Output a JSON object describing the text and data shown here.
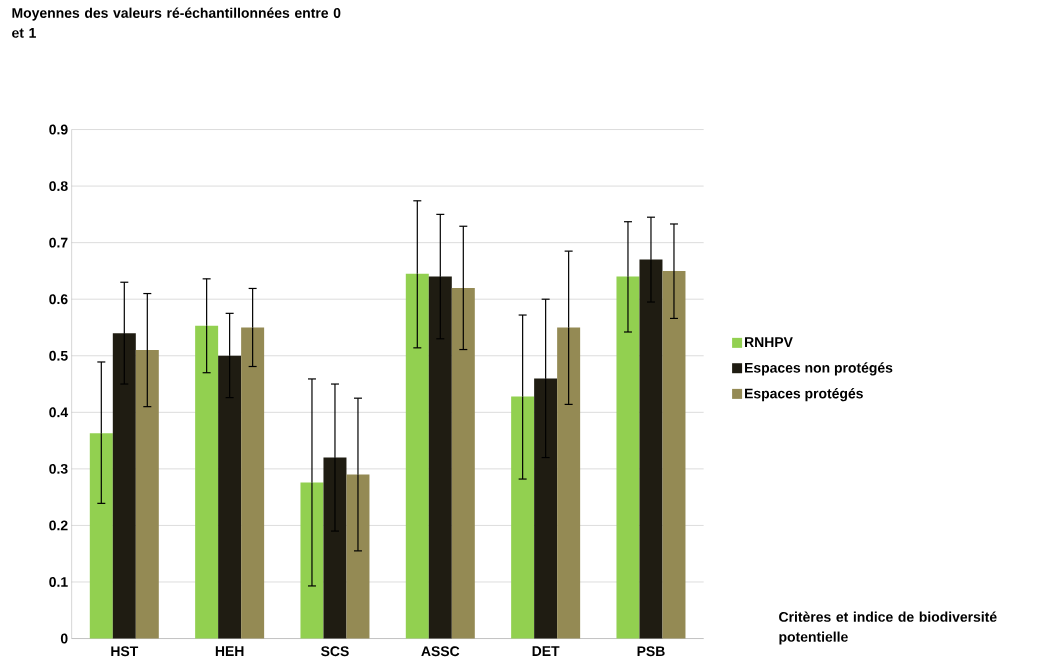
{
  "chart_data": {
    "type": "bar",
    "annotations": [
      "Moyennes des valeurs ré-échantillonnées entre 0 et 1",
      "Critères et indice de biodiversité potentielle"
    ],
    "categories": [
      "HST",
      "HEH",
      "SCS",
      "ASSC",
      "DET",
      "PSB"
    ],
    "series": [
      {
        "name": "RNHPV",
        "color": "#92d050",
        "values": [
          0.363,
          0.553,
          0.276,
          0.645,
          0.428,
          0.64
        ],
        "errors": [
          [
            0.239,
            0.489
          ],
          [
            0.47,
            0.636
          ],
          [
            0.093,
            0.459
          ],
          [
            0.514,
            0.774
          ],
          [
            0.282,
            0.572
          ],
          [
            0.542,
            0.737
          ]
        ]
      },
      {
        "name": "Espaces non protégés",
        "color": "#1f1c12",
        "values": [
          0.54,
          0.5,
          0.32,
          0.64,
          0.46,
          0.67
        ],
        "errors": [
          [
            0.45,
            0.63
          ],
          [
            0.426,
            0.575
          ],
          [
            0.19,
            0.45
          ],
          [
            0.53,
            0.75
          ],
          [
            0.32,
            0.6
          ],
          [
            0.595,
            0.745
          ]
        ]
      },
      {
        "name": "Espaces protégés",
        "color": "#948a54",
        "values": [
          0.51,
          0.55,
          0.29,
          0.62,
          0.55,
          0.65
        ],
        "errors": [
          [
            0.41,
            0.61
          ],
          [
            0.481,
            0.619
          ],
          [
            0.155,
            0.425
          ],
          [
            0.511,
            0.729
          ],
          [
            0.414,
            0.685
          ],
          [
            0.566,
            0.733
          ]
        ]
      }
    ],
    "ylim": [
      0,
      0.9
    ],
    "yticks": [
      0,
      0.1,
      0.2,
      0.3,
      0.4,
      0.5,
      0.6,
      0.7,
      0.8,
      0.9
    ],
    "grid": "y",
    "legend": "right"
  }
}
